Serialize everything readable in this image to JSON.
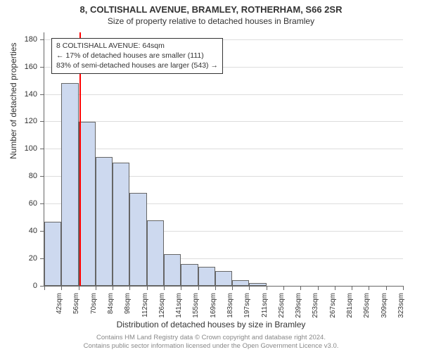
{
  "title_main": "8, COLTISHALL AVENUE, BRAMLEY, ROTHERHAM, S66 2SR",
  "title_sub": "Size of property relative to detached houses in Bramley",
  "y_axis_title": "Number of detached properties",
  "x_axis_title": "Distribution of detached houses by size in Bramley",
  "footer_l1": "Contains HM Land Registry data © Crown copyright and database right 2024.",
  "footer_l2": "Contains public sector information licensed under the Open Government Licence v3.0.",
  "annotation": {
    "l1": "8 COLTISHALL AVENUE: 64sqm",
    "l2": "← 17% of detached houses are smaller (111)",
    "l3": "83% of semi-detached houses are larger (543) →"
  },
  "chart": {
    "type": "histogram",
    "y_min": 0,
    "y_max": 185,
    "y_ticks": [
      0,
      20,
      40,
      60,
      80,
      100,
      120,
      140,
      160,
      180
    ],
    "x_labels": [
      "42sqm",
      "56sqm",
      "70sqm",
      "84sqm",
      "98sqm",
      "112sqm",
      "126sqm",
      "141sqm",
      "155sqm",
      "169sqm",
      "183sqm",
      "197sqm",
      "211sqm",
      "225sqm",
      "239sqm",
      "253sqm",
      "267sqm",
      "281sqm",
      "295sqm",
      "309sqm",
      "323sqm"
    ],
    "bars": [
      47,
      148,
      120,
      94,
      90,
      68,
      48,
      23,
      16,
      14,
      11,
      4,
      2,
      0,
      0,
      0,
      0,
      0,
      0,
      0,
      0
    ],
    "bar_color": "#cdd9ef",
    "bar_border": "#666666",
    "grid_color": "#dddddd",
    "highlight_color": "#ff0000",
    "highlight_x_value": 64,
    "x_min": 35,
    "x_max": 330,
    "background": "#ffffff",
    "axis_color": "#666666",
    "tick_fontsize": 11,
    "label_fontsize": 12
  }
}
